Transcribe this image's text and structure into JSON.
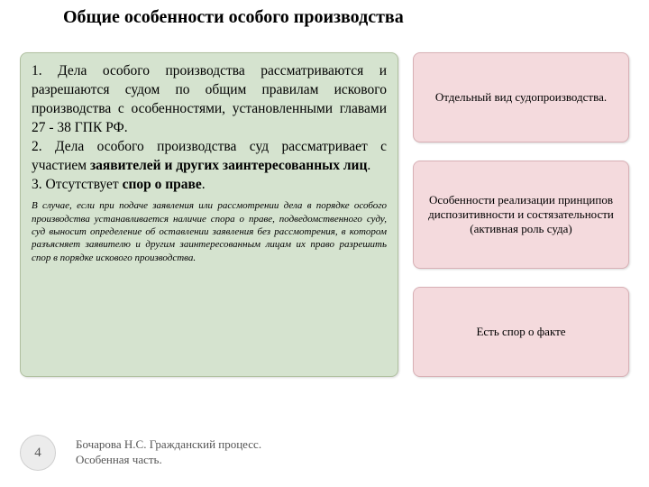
{
  "title": "Общие особенности особого производства",
  "main": {
    "p1_prefix": "1. Дела особого производства рассматриваются и разрешаются судом по общим правилам искового производства с особенностями, установленными главами 27 - 38 ГПК РФ.",
    "p2_prefix": "2. Дела особого производства суд рассматривает с участием ",
    "p2_bold": "заявителей и других заинтересованных лиц",
    "p2_suffix": ".",
    "p3_prefix": "3. Отсутствует ",
    "p3_bold": "спор о праве",
    "p3_suffix": ".",
    "note": "В случае, если при подаче заявления или рассмотрении дела в порядке особого производства устанавливается наличие спора о праве, подведомственного суду, суд выносит определение об оставлении заявления без рассмотрения, в котором разъясняет заявителю и другим заинтересованным лицам их право разрешить спор в порядке искового производства."
  },
  "side": {
    "box1": "Отдельный вид судопроизводства.",
    "box2": "Особенности реализации принципов диспозитивности и состязательности (активная роль суда)",
    "box3": "Есть спор о факте"
  },
  "footer": {
    "page": "4",
    "author_line1": "Бочарова Н.С. Гражданский процесс.",
    "author_line2": "Особенная часть."
  },
  "colors": {
    "main_bg": "#d5e3cf",
    "side_bg": "#f4dadd",
    "page_bg": "#ffffff"
  }
}
